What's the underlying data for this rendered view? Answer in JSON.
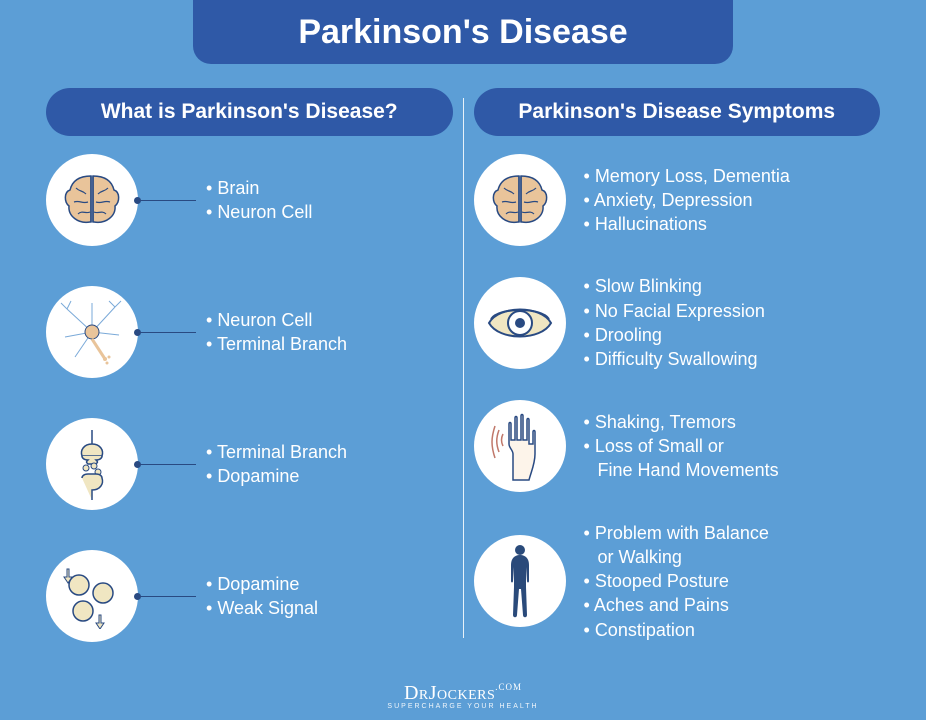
{
  "colors": {
    "page_bg": "#5c9ed6",
    "banner_bg": "#2f59a7",
    "header_bg": "#2f59a7",
    "text": "#ffffff",
    "leader": "#294a82",
    "icon_stroke": "#294a82",
    "icon_fill_warm": "#e9c49a",
    "icon_fill_pale": "#f0e6c2",
    "icon_fill_blue": "#7aa9d8",
    "icon_fill_navy": "#2a4a7a"
  },
  "title": "Parkinson's Disease",
  "left": {
    "header": "What is Parkinson's Disease?",
    "items": [
      {
        "icon": "brain",
        "lines": [
          "Brain",
          "Neuron Cell"
        ]
      },
      {
        "icon": "neuron",
        "lines": [
          "Neuron Cell",
          "Terminal Branch"
        ]
      },
      {
        "icon": "synapse",
        "lines": [
          "Terminal Branch",
          "Dopamine"
        ]
      },
      {
        "icon": "signal",
        "lines": [
          "Dopamine",
          "Weak Signal"
        ]
      }
    ]
  },
  "right": {
    "header": "Parkinson's Disease Symptoms",
    "items": [
      {
        "icon": "brain",
        "lines": [
          "Memory Loss, Dementia",
          "Anxiety, Depression",
          "Hallucinations"
        ]
      },
      {
        "icon": "eye",
        "lines": [
          "Slow Blinking",
          "No Facial Expression",
          "Drooling",
          "Difficulty Swallowing"
        ]
      },
      {
        "icon": "hand",
        "lines": [
          "Shaking, Tremors",
          "Loss of Small or",
          "   Fine Hand Movements"
        ]
      },
      {
        "icon": "body",
        "lines": [
          "Problem with Balance",
          "   or Walking",
          "Stooped Posture",
          "Aches and Pains",
          "Constipation"
        ]
      }
    ]
  },
  "footer": {
    "brand_pre": "Dr",
    "brand_main": "Jockers",
    "brand_suffix": ".COM",
    "tagline": "SUPERCHARGE YOUR HEALTH"
  }
}
